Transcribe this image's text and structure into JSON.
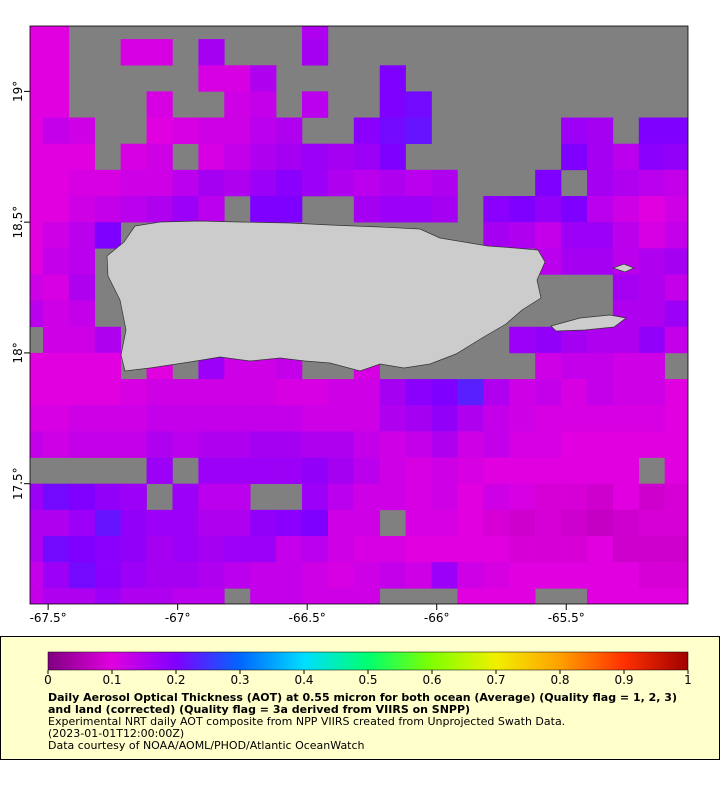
{
  "chart_data": {
    "type": "heatmap",
    "title": "Daily Aerosol Optical Thickness (AOT) at 0.55 micron for both ocean (Average) (Quality flag = 1, 2, 3) and land (corrected) (Quality flag = 3a derived from VIIRS on SNPP)",
    "notes": [
      "Experimental NRT daily AOT composite from NPP VIIRS created from Unprojected Swath Data.",
      "(2023-01-01T12:00:00Z)",
      "Data courtesy of NOAA/AOML/PHOD/Atlantic OceanWatch"
    ],
    "x": [
      -67.57,
      -67.47,
      -67.37,
      -67.27,
      -67.17,
      -67.07,
      -66.97,
      -66.87,
      -66.77,
      -66.67,
      -66.57,
      -66.47,
      -66.37,
      -66.27,
      -66.17,
      -66.07,
      -65.97,
      -65.87,
      -65.77,
      -65.67,
      -65.57,
      -65.47,
      -65.37,
      -65.27,
      -65.17,
      -65.07
    ],
    "y": [
      19.25,
      19.15,
      19.05,
      18.95,
      18.85,
      18.75,
      18.65,
      18.55,
      18.45,
      18.35,
      18.25,
      18.15,
      18.05,
      17.95,
      17.85,
      17.75,
      17.65,
      17.55,
      17.45,
      17.35,
      17.25,
      17.15,
      17.05
    ],
    "xlim": [
      -67.57,
      -65.03
    ],
    "ylim": [
      17.04,
      19.25
    ],
    "xticks": [
      {
        "value": -67.5,
        "label": "-67.5°"
      },
      {
        "value": -67,
        "label": "-67°"
      },
      {
        "value": -66.5,
        "label": "-66.5°"
      },
      {
        "value": -66,
        "label": "-66°"
      },
      {
        "value": -65.5,
        "label": "-65.5°"
      }
    ],
    "yticks": [
      {
        "value": 19,
        "label": "19°"
      },
      {
        "value": 18.5,
        "label": "18.5°"
      },
      {
        "value": 18,
        "label": "18°"
      },
      {
        "value": 17.5,
        "label": "17.5°"
      }
    ],
    "clim": [
      0,
      1
    ],
    "cticks": [
      0,
      0.1,
      0.2,
      0.3,
      0.4,
      0.5,
      0.6,
      0.7,
      0.8,
      0.9,
      1
    ],
    "colors": [
      "#800080",
      "#e000e0",
      "#8000ff",
      "#0066ff",
      "#00ddff",
      "#00ff70",
      "#80ff00",
      "#f0f000",
      "#ffa000",
      "#ff3000",
      "#a00000"
    ],
    "nodata_color": "#808080",
    "values": [
      [
        0.1,
        0.1,
        null,
        null,
        null,
        null,
        null,
        null,
        null,
        null,
        null,
        0.15,
        null,
        null,
        null,
        null,
        null,
        null,
        null,
        null,
        null,
        null,
        null,
        null,
        null,
        null
      ],
      [
        0.1,
        0.1,
        null,
        null,
        0.11,
        0.11,
        null,
        0.16,
        null,
        null,
        null,
        0.16,
        null,
        null,
        null,
        null,
        null,
        null,
        null,
        null,
        null,
        null,
        null,
        null,
        null,
        null
      ],
      [
        0.1,
        0.1,
        null,
        null,
        null,
        null,
        null,
        0.11,
        0.11,
        0.15,
        null,
        null,
        null,
        null,
        0.2,
        null,
        null,
        null,
        null,
        null,
        null,
        null,
        null,
        null,
        null,
        null
      ],
      [
        0.1,
        0.1,
        null,
        null,
        null,
        0.11,
        null,
        null,
        0.12,
        0.13,
        null,
        0.14,
        null,
        null,
        0.2,
        0.21,
        null,
        null,
        null,
        null,
        null,
        null,
        null,
        null,
        null,
        null
      ],
      [
        0.1,
        0.13,
        0.12,
        null,
        null,
        0.1,
        0.11,
        0.12,
        0.12,
        0.14,
        0.15,
        null,
        null,
        0.19,
        0.21,
        0.22,
        null,
        null,
        null,
        null,
        null,
        0.17,
        0.16,
        null,
        0.2,
        0.2
      ],
      [
        0.1,
        0.1,
        0.1,
        null,
        0.11,
        0.12,
        null,
        0.11,
        0.13,
        0.15,
        0.16,
        0.17,
        0.16,
        0.17,
        0.2,
        null,
        null,
        null,
        null,
        null,
        null,
        0.2,
        0.16,
        0.14,
        0.19,
        0.18
      ],
      [
        0.1,
        0.1,
        0.11,
        0.11,
        0.12,
        0.12,
        0.14,
        0.16,
        0.15,
        0.17,
        0.19,
        0.17,
        0.15,
        0.14,
        0.15,
        0.14,
        0.15,
        null,
        null,
        null,
        0.2,
        null,
        0.16,
        0.15,
        0.14,
        0.13
      ],
      [
        0.1,
        0.1,
        0.12,
        0.13,
        0.14,
        0.15,
        0.17,
        0.14,
        null,
        0.2,
        0.2,
        null,
        null,
        0.16,
        0.17,
        0.17,
        0.16,
        null,
        0.19,
        0.2,
        0.18,
        0.2,
        0.14,
        0.12,
        0.1,
        0.12
      ],
      [
        0.1,
        0.12,
        0.14,
        0.2,
        null,
        null,
        null,
        null,
        null,
        null,
        null,
        null,
        null,
        null,
        null,
        null,
        null,
        null,
        0.16,
        0.15,
        0.13,
        0.17,
        0.17,
        0.14,
        0.11,
        0.13
      ],
      [
        0.1,
        0.13,
        0.14,
        null,
        null,
        null,
        null,
        null,
        null,
        null,
        0.17,
        null,
        null,
        null,
        null,
        null,
        null,
        null,
        null,
        null,
        0.14,
        0.16,
        0.16,
        0.14,
        0.15,
        0.16
      ],
      [
        0.12,
        0.11,
        0.15,
        null,
        null,
        null,
        null,
        null,
        null,
        null,
        null,
        null,
        null,
        null,
        null,
        null,
        null,
        null,
        null,
        null,
        null,
        null,
        null,
        0.16,
        0.15,
        0.13
      ],
      [
        0.14,
        0.12,
        0.13,
        null,
        null,
        null,
        null,
        null,
        null,
        null,
        null,
        null,
        null,
        null,
        null,
        null,
        null,
        null,
        null,
        null,
        null,
        null,
        null,
        0.15,
        0.15,
        0.17
      ],
      [
        null,
        0.12,
        0.12,
        0.15,
        null,
        0.17,
        0.15,
        null,
        null,
        null,
        null,
        null,
        null,
        null,
        null,
        null,
        null,
        null,
        null,
        0.17,
        0.18,
        0.16,
        0.15,
        0.15,
        0.18,
        0.13
      ],
      [
        0.1,
        0.1,
        0.1,
        0.1,
        null,
        0.1,
        null,
        0.17,
        0.12,
        0.12,
        0.13,
        null,
        null,
        0.11,
        null,
        null,
        null,
        null,
        null,
        null,
        0.12,
        0.13,
        0.13,
        0.12,
        0.12,
        null
      ],
      [
        0.1,
        0.1,
        0.1,
        0.1,
        0.11,
        0.12,
        0.12,
        0.12,
        0.12,
        0.12,
        0.11,
        0.11,
        0.12,
        0.12,
        0.16,
        0.19,
        0.2,
        0.23,
        0.15,
        0.12,
        0.13,
        0.11,
        0.13,
        0.12,
        0.12,
        0.1
      ],
      [
        0.11,
        0.11,
        0.12,
        0.12,
        0.12,
        0.13,
        0.13,
        0.13,
        0.13,
        0.13,
        0.13,
        0.12,
        0.12,
        0.12,
        0.15,
        0.16,
        0.18,
        0.15,
        0.13,
        0.12,
        0.11,
        0.11,
        0.11,
        0.11,
        0.11,
        0.1
      ],
      [
        0.13,
        0.12,
        0.13,
        0.13,
        0.13,
        0.15,
        0.14,
        0.15,
        0.15,
        0.16,
        0.16,
        0.15,
        0.15,
        0.13,
        0.12,
        0.13,
        0.15,
        0.12,
        0.13,
        0.11,
        0.11,
        0.1,
        0.1,
        0.1,
        0.1,
        0.1
      ],
      [
        null,
        null,
        null,
        null,
        null,
        0.17,
        null,
        0.17,
        0.17,
        0.17,
        0.17,
        0.18,
        0.16,
        0.14,
        0.12,
        0.11,
        0.12,
        0.11,
        0.1,
        0.1,
        0.1,
        0.1,
        0.1,
        0.1,
        null,
        0.1
      ],
      [
        0.17,
        0.21,
        0.2,
        0.18,
        0.17,
        null,
        0.17,
        0.14,
        0.14,
        null,
        null,
        0.17,
        0.14,
        0.12,
        0.12,
        0.11,
        0.12,
        0.1,
        0.12,
        0.11,
        0.09,
        0.09,
        0.08,
        0.1,
        0.08,
        0.09
      ],
      [
        0.15,
        0.15,
        0.17,
        0.22,
        0.18,
        0.17,
        0.17,
        0.15,
        0.15,
        0.18,
        0.19,
        0.2,
        0.12,
        0.12,
        null,
        0.11,
        0.11,
        0.1,
        0.09,
        0.08,
        0.09,
        0.08,
        0.07,
        0.08,
        0.09,
        0.09
      ],
      [
        0.15,
        0.21,
        0.2,
        0.19,
        0.18,
        0.16,
        0.17,
        0.16,
        0.17,
        0.17,
        0.13,
        0.14,
        0.12,
        0.11,
        0.11,
        0.1,
        0.1,
        0.1,
        0.1,
        0.09,
        0.09,
        0.09,
        0.1,
        0.08,
        0.08,
        0.08
      ],
      [
        0.13,
        0.17,
        0.21,
        0.19,
        0.17,
        0.16,
        0.16,
        0.15,
        0.14,
        0.13,
        0.13,
        0.12,
        0.11,
        0.12,
        0.13,
        0.12,
        0.17,
        0.12,
        0.11,
        0.1,
        0.1,
        0.1,
        0.1,
        0.1,
        0.09,
        0.09
      ],
      [
        0.13,
        0.15,
        0.15,
        0.17,
        0.15,
        0.15,
        0.14,
        0.14,
        null,
        0.13,
        0.13,
        0.12,
        0.12,
        0.12,
        null,
        null,
        null,
        0.1,
        0.1,
        0.1,
        null,
        null,
        0.1,
        0.1,
        0.1,
        0.1
      ]
    ]
  }
}
